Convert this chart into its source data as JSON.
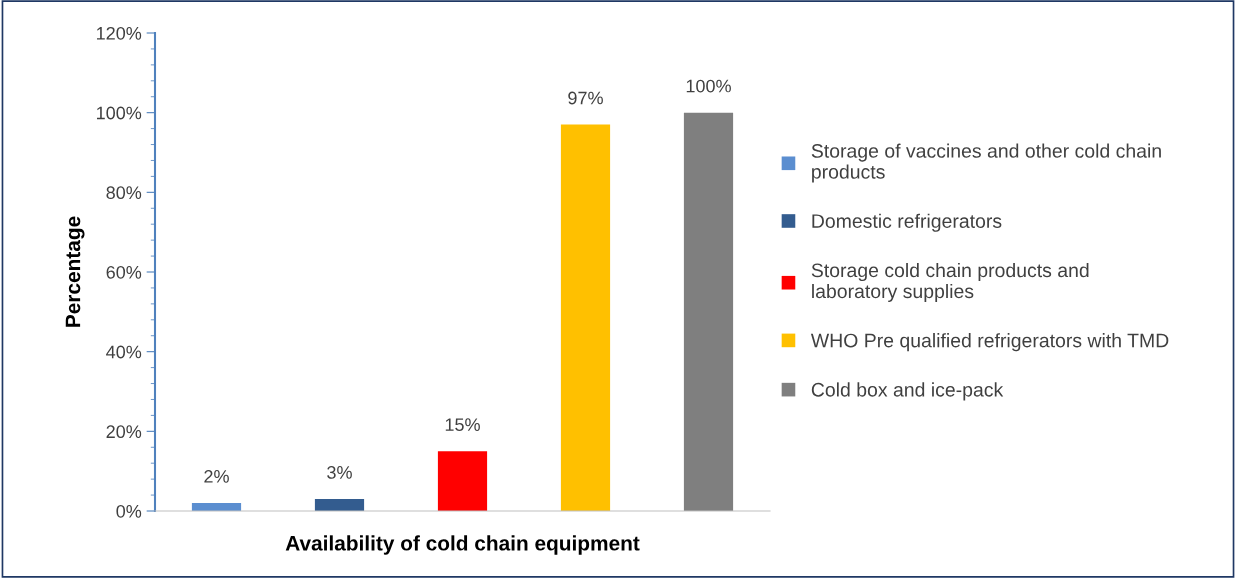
{
  "chart_data": {
    "type": "bar",
    "xlabel": "Availability of cold chain equipment",
    "ylabel": "Percentage",
    "categories": [
      null,
      null,
      null,
      null,
      null
    ],
    "series": [
      {
        "name": "Storage of vaccines and other cold chain products",
        "color": "#5b8ed0",
        "values": [
          2,
          null,
          null,
          null,
          null
        ],
        "value_labels": [
          "2%",
          null,
          null,
          null,
          null
        ]
      },
      {
        "name": "Domestic refrigerators",
        "color": "#335c8f",
        "values": [
          null,
          3,
          null,
          null,
          null
        ],
        "value_labels": [
          null,
          "3%",
          null,
          null,
          null
        ]
      },
      {
        "name": "Storage cold chain products and laboratory supplies",
        "color": "#ff0000",
        "values": [
          null,
          null,
          15,
          null,
          null
        ],
        "value_labels": [
          null,
          null,
          "15%",
          null,
          null
        ]
      },
      {
        "name": "WHO Pre qualified refrigerators with TMD",
        "color": "#ffc000",
        "values": [
          null,
          null,
          null,
          97,
          null
        ],
        "value_labels": [
          null,
          null,
          null,
          "97%",
          null
        ]
      },
      {
        "name": "Cold box and ice-pack",
        "color": "#7f7f7f",
        "values": [
          null,
          null,
          null,
          null,
          100
        ],
        "value_labels": [
          null,
          null,
          null,
          null,
          "100%"
        ]
      }
    ],
    "ylim": [
      0,
      120
    ],
    "yticks": [
      {
        "value": 0,
        "label": "0%"
      },
      {
        "value": 20,
        "label": "20%"
      },
      {
        "value": 40,
        "label": "40%"
      },
      {
        "value": 60,
        "label": "60%"
      },
      {
        "value": 80,
        "label": "80%"
      },
      {
        "value": 100,
        "label": "100%"
      },
      {
        "value": 120,
        "label": "120%"
      }
    ],
    "grid": false,
    "legend": "right"
  }
}
